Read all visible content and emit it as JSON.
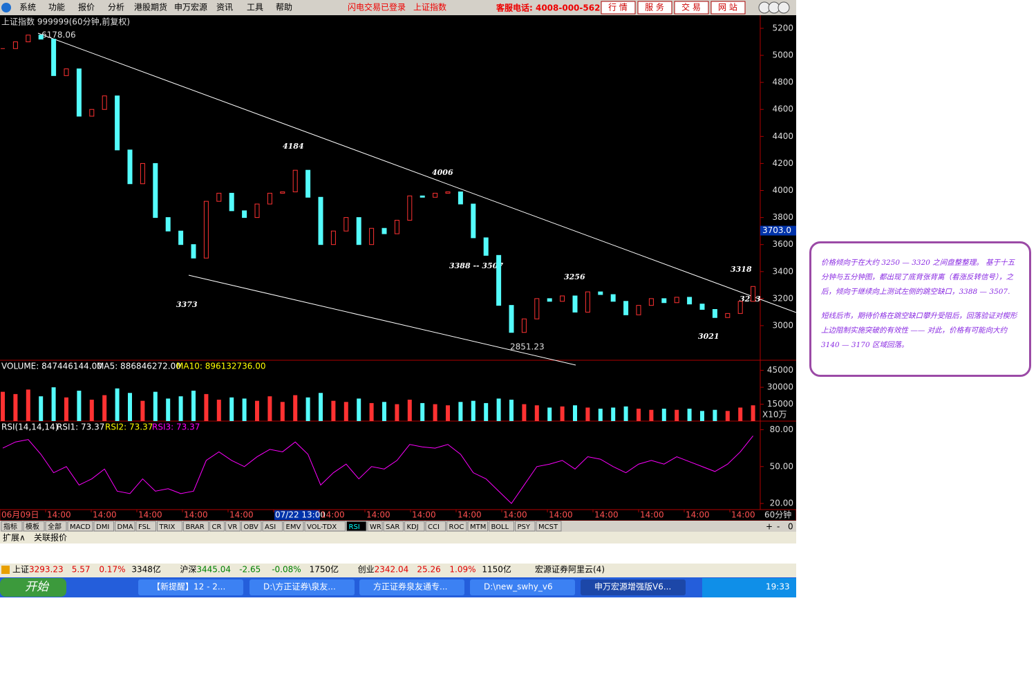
{
  "menu": {
    "items": [
      "系统",
      "功能",
      "报价",
      "分析",
      "港股期货",
      "申万宏源",
      "资讯",
      "工具",
      "帮助"
    ],
    "status": "闪电交易已登录",
    "stock": "上证指数",
    "hotline": "客服电话: 4008-000-562",
    "buttons": [
      "行 情",
      "服 务",
      "交 易",
      "网 站"
    ]
  },
  "chart_data": {
    "type": "candlestick",
    "title": "上证指数 999999(60分钟,前复权)",
    "high_label": "6178.06",
    "low_label": "2851.23",
    "cursor_label": {
      "value": 3703,
      "label": "3703.0"
    },
    "annotations": [
      "4184",
      "4006",
      "3388 -- 3507",
      "3256",
      "3318",
      "3253",
      "3021",
      "3373"
    ],
    "closes": [
      5050,
      5100,
      5150,
      5120,
      4850,
      4900,
      4550,
      4600,
      4700,
      4300,
      4050,
      4200,
      3800,
      3700,
      3600,
      3500,
      3920,
      3980,
      3850,
      3800,
      3900,
      3980,
      3990,
      4150,
      3950,
      3600,
      3700,
      3800,
      3600,
      3720,
      3680,
      3780,
      3960,
      3950,
      3980,
      3990,
      3900,
      3650,
      3520,
      3150,
      2950,
      3050,
      3200,
      3180,
      3220,
      3100,
      3250,
      3230,
      3180,
      3080,
      3150,
      3200,
      3170,
      3210,
      3160,
      3120,
      3060,
      3090,
      3180,
      3290
    ],
    "ylim": [
      2744,
      5297
    ],
    "yticks": [
      3000,
      3200,
      3400,
      3600,
      3800,
      4000,
      4200,
      4400,
      4600,
      4800,
      5000,
      5200
    ],
    "volume": {
      "title": "VOLUME: 847446144.00",
      "ma5": "MA5: 886846272.00",
      "ma10": "MA10: 896132736.00",
      "unit": "X10万",
      "values": [
        26000,
        24000,
        28000,
        22000,
        30000,
        21000,
        27000,
        19000,
        23000,
        29000,
        25000,
        18000,
        26000,
        20000,
        22000,
        27000,
        24000,
        19000,
        21000,
        20000,
        18000,
        22000,
        17000,
        23000,
        21000,
        25000,
        18000,
        17000,
        20000,
        16000,
        17000,
        15000,
        19000,
        16000,
        15000,
        14000,
        17000,
        18000,
        16000,
        20000,
        19000,
        15000,
        14000,
        12000,
        13000,
        14000,
        12000,
        11000,
        12000,
        13000,
        11000,
        10000,
        11000,
        10000,
        11000,
        9000,
        10000,
        9000,
        12000,
        14000
      ],
      "ylim": [
        0,
        54000
      ],
      "yticks": [
        15000,
        30000,
        45000
      ]
    },
    "rsi": {
      "title": "RSI(14,14,14)",
      "rsi1": "RSI1: 73.37",
      "rsi2": "RSI2: 73.37",
      "rsi3": "RSI3: 73.37",
      "values": [
        65,
        70,
        72,
        60,
        45,
        50,
        35,
        40,
        48,
        30,
        28,
        40,
        30,
        32,
        28,
        30,
        55,
        62,
        55,
        50,
        58,
        64,
        62,
        70,
        60,
        35,
        45,
        52,
        40,
        50,
        48,
        55,
        68,
        66,
        65,
        68,
        60,
        45,
        40,
        30,
        20,
        35,
        50,
        52,
        55,
        48,
        58,
        56,
        50,
        45,
        52,
        55,
        52,
        58,
        54,
        50,
        46,
        52,
        62,
        75
      ],
      "ylim": [
        15,
        87
      ],
      "yticks": [
        {
          "value": 20,
          "label": "20.00"
        },
        {
          "value": 50,
          "label": "50.00"
        },
        {
          "value": 80,
          "label": "80.00"
        }
      ]
    },
    "x_labels": [
      "06月09日",
      "14:00",
      "14:00",
      "14:00",
      "14:00",
      "14:00",
      "07/22 13:00",
      "14:00",
      "14:00",
      "14:00",
      "14:00",
      "14:00",
      "14:00",
      "14:00",
      "14:00",
      "14:00",
      "14:00"
    ],
    "period": "60分钟"
  },
  "indicator_tabs": [
    "指标",
    "模板",
    "全部",
    "MACD",
    "DMI",
    "DMA",
    "FSL",
    "TRIX",
    "BRAR",
    "CR",
    "VR",
    "OBV",
    "ASI",
    "EMV",
    "VOL-TDX",
    "RSI",
    "WR",
    "SAR",
    "KDJ",
    "CCI",
    "ROC",
    "MTM",
    "BOLL",
    "PSY",
    "MCST"
  ],
  "tab_controls": [
    "+",
    "-",
    "0"
  ],
  "sub_tabs": [
    "扩展∧",
    "关联报价"
  ],
  "status_bar": {
    "items": [
      "上证",
      "3293.23",
      "5.57",
      "0.17%",
      "3348亿",
      "沪深",
      "3445.04",
      "-2.65",
      "-0.08%",
      "1750亿",
      "创业",
      "2342.04",
      "25.26",
      "1.09%",
      "1150亿"
    ],
    "broker": "宏源证券阿里云(4)"
  },
  "taskbar": {
    "start": "开始",
    "windows": [
      "【新提醒】12 - 2...",
      "D:\\方正证券\\泉友...",
      "方正证券泉友通专...",
      "D:\\new_swhy_v6",
      "申万宏源增强版V6..."
    ],
    "clock": "19:33"
  },
  "note": {
    "paragraphs": [
      "价格倾向于在大约 3250 — 3320 之间盘整整理。 基于十五分钟与五分钟图，都出现了底背张背离（看涨反转信号），之后，倾向于继续向上测试左侧的跳空缺口，3388 — 3507.",
      "短线后市，期待价格在跳空缺口攀升受阻后，回落验证对楔形上边阻制实施突破的有效性 —— 对此，价格有可能向大约 3140 — 3170 区域回落。"
    ]
  }
}
